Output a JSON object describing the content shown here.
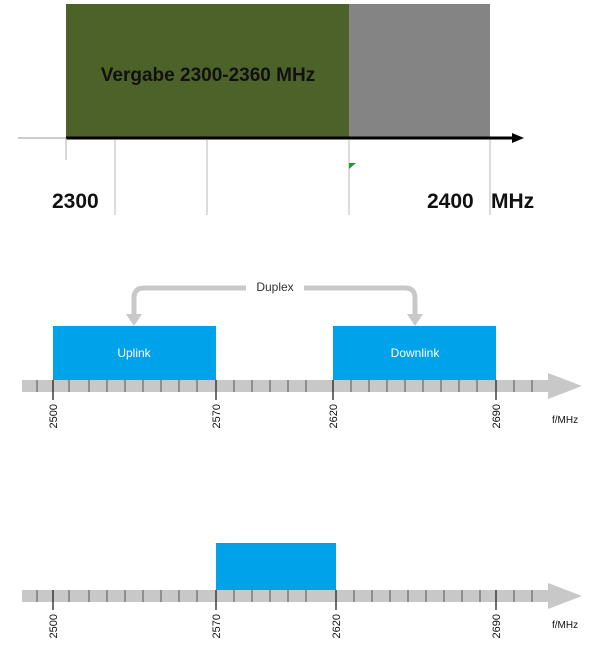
{
  "panel1": {
    "band_label": "Vergabe 2300-2360 MHz",
    "tick_start": "2300",
    "tick_end": "2400",
    "unit": "MHz",
    "colors": {
      "assigned": "#4c6228",
      "unassigned": "#848484",
      "marker": "#1f9a2f",
      "axis": "#000000"
    }
  },
  "panel2": {
    "duplex_label": "Duplex",
    "uplink_label": "Uplink",
    "downlink_label": "Downlink",
    "ticks": [
      "2500",
      "2570",
      "2620",
      "2690"
    ],
    "unit": "f/MHz",
    "colors": {
      "block": "#00a2ea",
      "arrow": "#c8c8c8"
    }
  },
  "panel3": {
    "ticks": [
      "2500",
      "2570",
      "2620",
      "2690"
    ],
    "unit": "f/MHz",
    "colors": {
      "block": "#00a2ea",
      "arrow": "#c8c8c8"
    }
  }
}
